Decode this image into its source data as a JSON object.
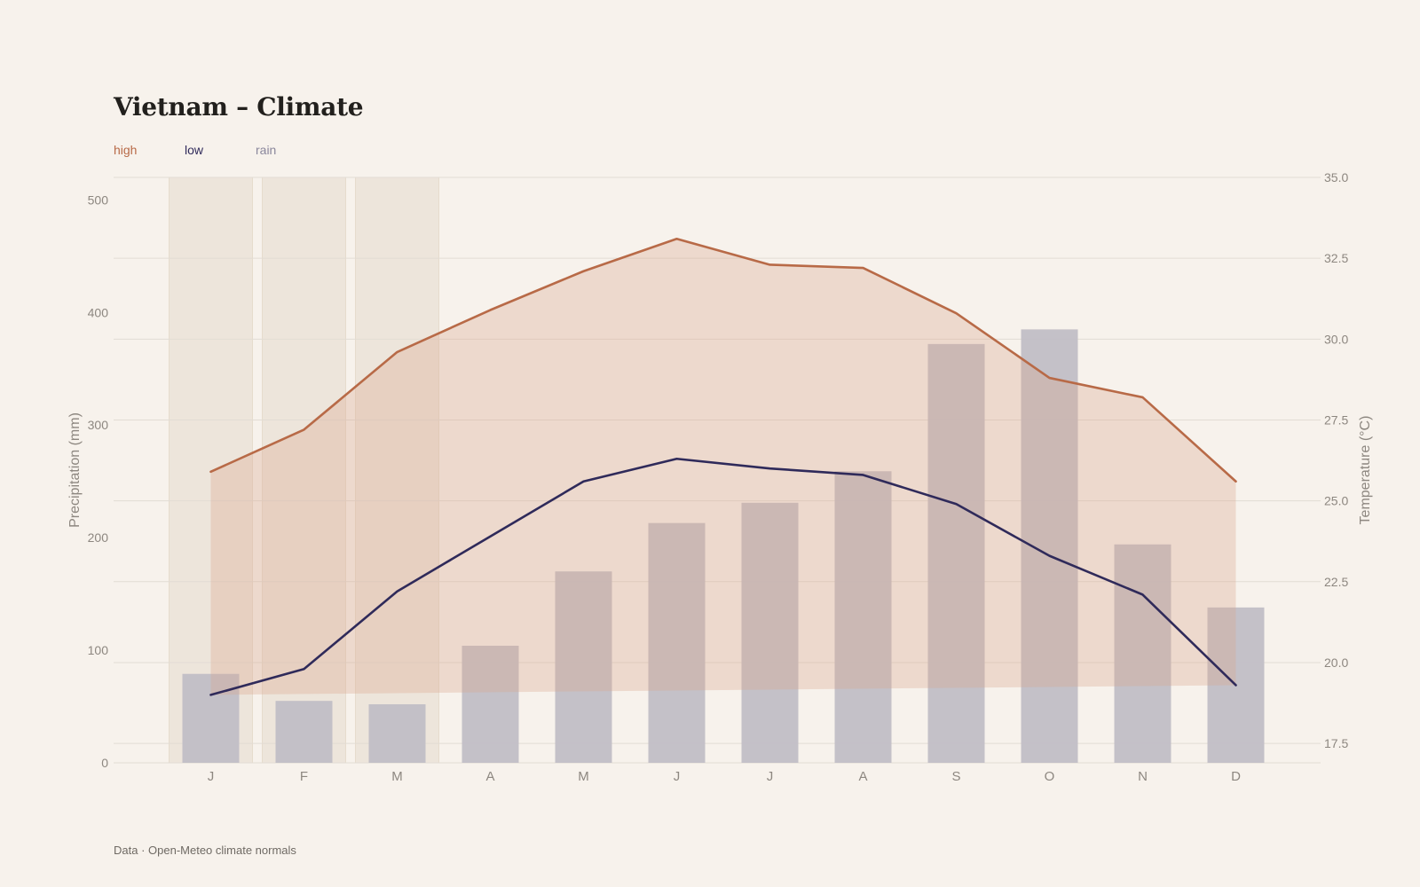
{
  "title": "Vietnam – Climate",
  "legend": {
    "high": "high",
    "low": "low",
    "rain": "rain"
  },
  "footer": "Data · Open-Meteo climate normals",
  "colors": {
    "high": "#b86a47",
    "high_fill": "#e9d5cb",
    "low": "#2f2a5a",
    "rain": "#c1bec6",
    "rain_legend": "#8a879c",
    "highlight": "#ede5db",
    "grid": "#e2dcd4"
  },
  "chart_data": {
    "type": "bar+line",
    "categories": [
      "J",
      "F",
      "M",
      "A",
      "M",
      "J",
      "J",
      "A",
      "S",
      "O",
      "N",
      "D"
    ],
    "highlighted_categories": [
      0,
      1,
      2
    ],
    "series": [
      {
        "name": "rain",
        "type": "bar",
        "axis": "left",
        "values": [
          79,
          55,
          52,
          104,
          170,
          213,
          231,
          259,
          372,
          385,
          194,
          138
        ]
      },
      {
        "name": "high",
        "type": "line",
        "axis": "right",
        "values": [
          25.9,
          27.2,
          29.6,
          30.9,
          32.1,
          33.1,
          32.3,
          32.2,
          30.8,
          28.8,
          28.2,
          25.6
        ]
      },
      {
        "name": "low",
        "type": "line",
        "axis": "right",
        "values": [
          19.0,
          19.8,
          22.2,
          23.9,
          25.6,
          26.3,
          26.0,
          25.8,
          24.9,
          23.3,
          22.1,
          19.3
        ]
      }
    ],
    "y_left": {
      "label": "Precipitation (mm)",
      "ticks": [
        0,
        100,
        200,
        300,
        400,
        500
      ],
      "range": [
        0,
        520
      ]
    },
    "y_right": {
      "label": "Temperature (°C)",
      "ticks": [
        17.5,
        20.0,
        22.5,
        25.0,
        27.5,
        30.0,
        32.5,
        35.0
      ],
      "range": [
        16.9,
        35.0
      ]
    },
    "grid": true,
    "legend_position": "top-left"
  }
}
